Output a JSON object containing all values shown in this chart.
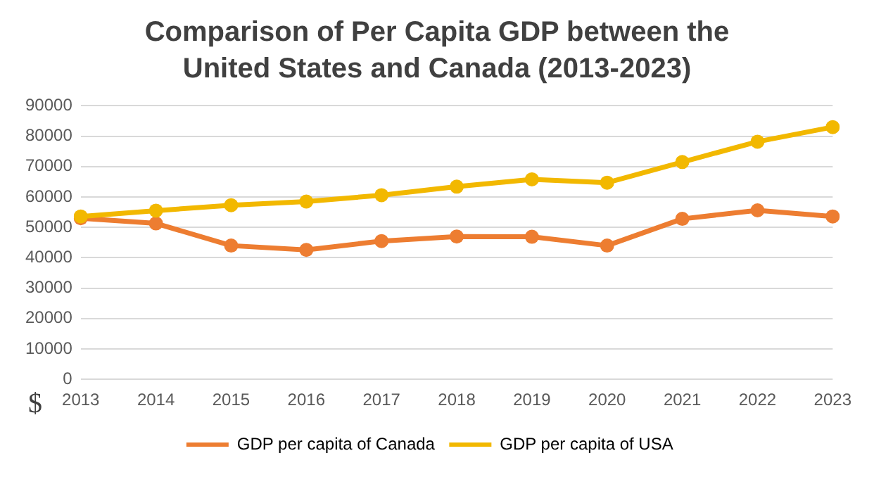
{
  "chart_data": {
    "type": "line",
    "title": "Comparison of Per Capita GDP between the United States and Canada (2013-2023)",
    "ylabel": "$",
    "categories": [
      "2013",
      "2014",
      "2015",
      "2016",
      "2017",
      "2018",
      "2019",
      "2020",
      "2021",
      "2022",
      "2023"
    ],
    "series": [
      {
        "name": "GDP per capita of Canada",
        "color": "#ed7d31",
        "values": [
          53000,
          51300,
          44000,
          42600,
          45500,
          47000,
          46900,
          44000,
          52800,
          55600,
          53600
        ]
      },
      {
        "name": "GDP per capita of USA",
        "color": "#f2b800",
        "values": [
          53600,
          55500,
          57300,
          58500,
          60600,
          63400,
          65800,
          64700,
          71500,
          78200,
          83000
        ]
      }
    ],
    "ylim": [
      0,
      90000
    ],
    "yticks": [
      0,
      10000,
      20000,
      30000,
      40000,
      50000,
      60000,
      70000,
      80000,
      90000
    ],
    "grid": "y",
    "legend": "bottom",
    "marker": "circle",
    "line_style": "solid"
  }
}
